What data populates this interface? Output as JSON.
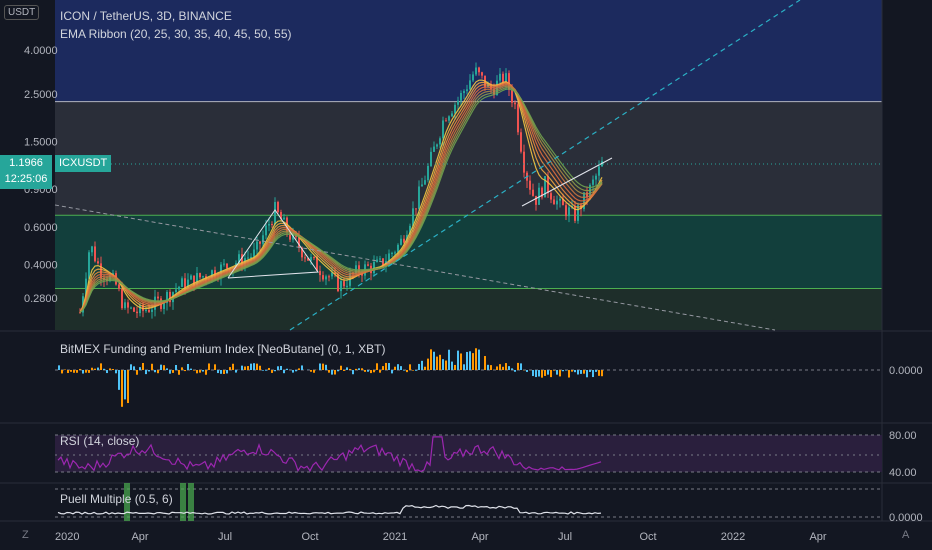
{
  "header": {
    "currency_badge": "USDT",
    "title": "ICON / TetherUS, 3D, BINANCE",
    "indicator": "EMA Ribbon (20, 25, 30, 35, 40, 45, 50, 55)"
  },
  "price_tag": {
    "value": "1.1966",
    "countdown": "12:25:06",
    "symbol": "ICXUSDT"
  },
  "chart_data": [
    {
      "type": "line",
      "scale": "log",
      "y_ticks": [
        "4.0000",
        "2.5000",
        "1.5000",
        "0.9000",
        "0.6000",
        "0.4000",
        "0.2800"
      ],
      "x_ticks": [
        "2020",
        "Apr",
        "Jul",
        "Oct",
        "2021",
        "Apr",
        "Jul",
        "Oct",
        "2022",
        "Apr"
      ],
      "last_price": 1.1966,
      "horizontal_levels": [
        2.3,
        0.68,
        0.31
      ],
      "grid": false
    },
    {
      "title": "BitMEX Funding and Premium Index [NeoButane] (0, 1, XBT)",
      "type": "bar",
      "y_ticks": [
        "0.0000"
      ]
    },
    {
      "title": "RSI (14, close)",
      "type": "line",
      "y_ticks": [
        "80.00",
        "40.00"
      ]
    },
    {
      "title": "Puell Multiple (0.5, 6)",
      "type": "line",
      "y_ticks": [
        "0.0000"
      ]
    }
  ],
  "footer": {
    "left_icon": "Z",
    "right_icon": "A"
  },
  "colors": {
    "background": "#131722",
    "up": "#26a69a",
    "down": "#ef5350",
    "top_zone": "#1c2a5e",
    "mid_zone": "#2a2e39",
    "teal_zone": "#123f3c",
    "bottom_zone": "#1e2e2a",
    "rsi": "#9c27b0"
  }
}
